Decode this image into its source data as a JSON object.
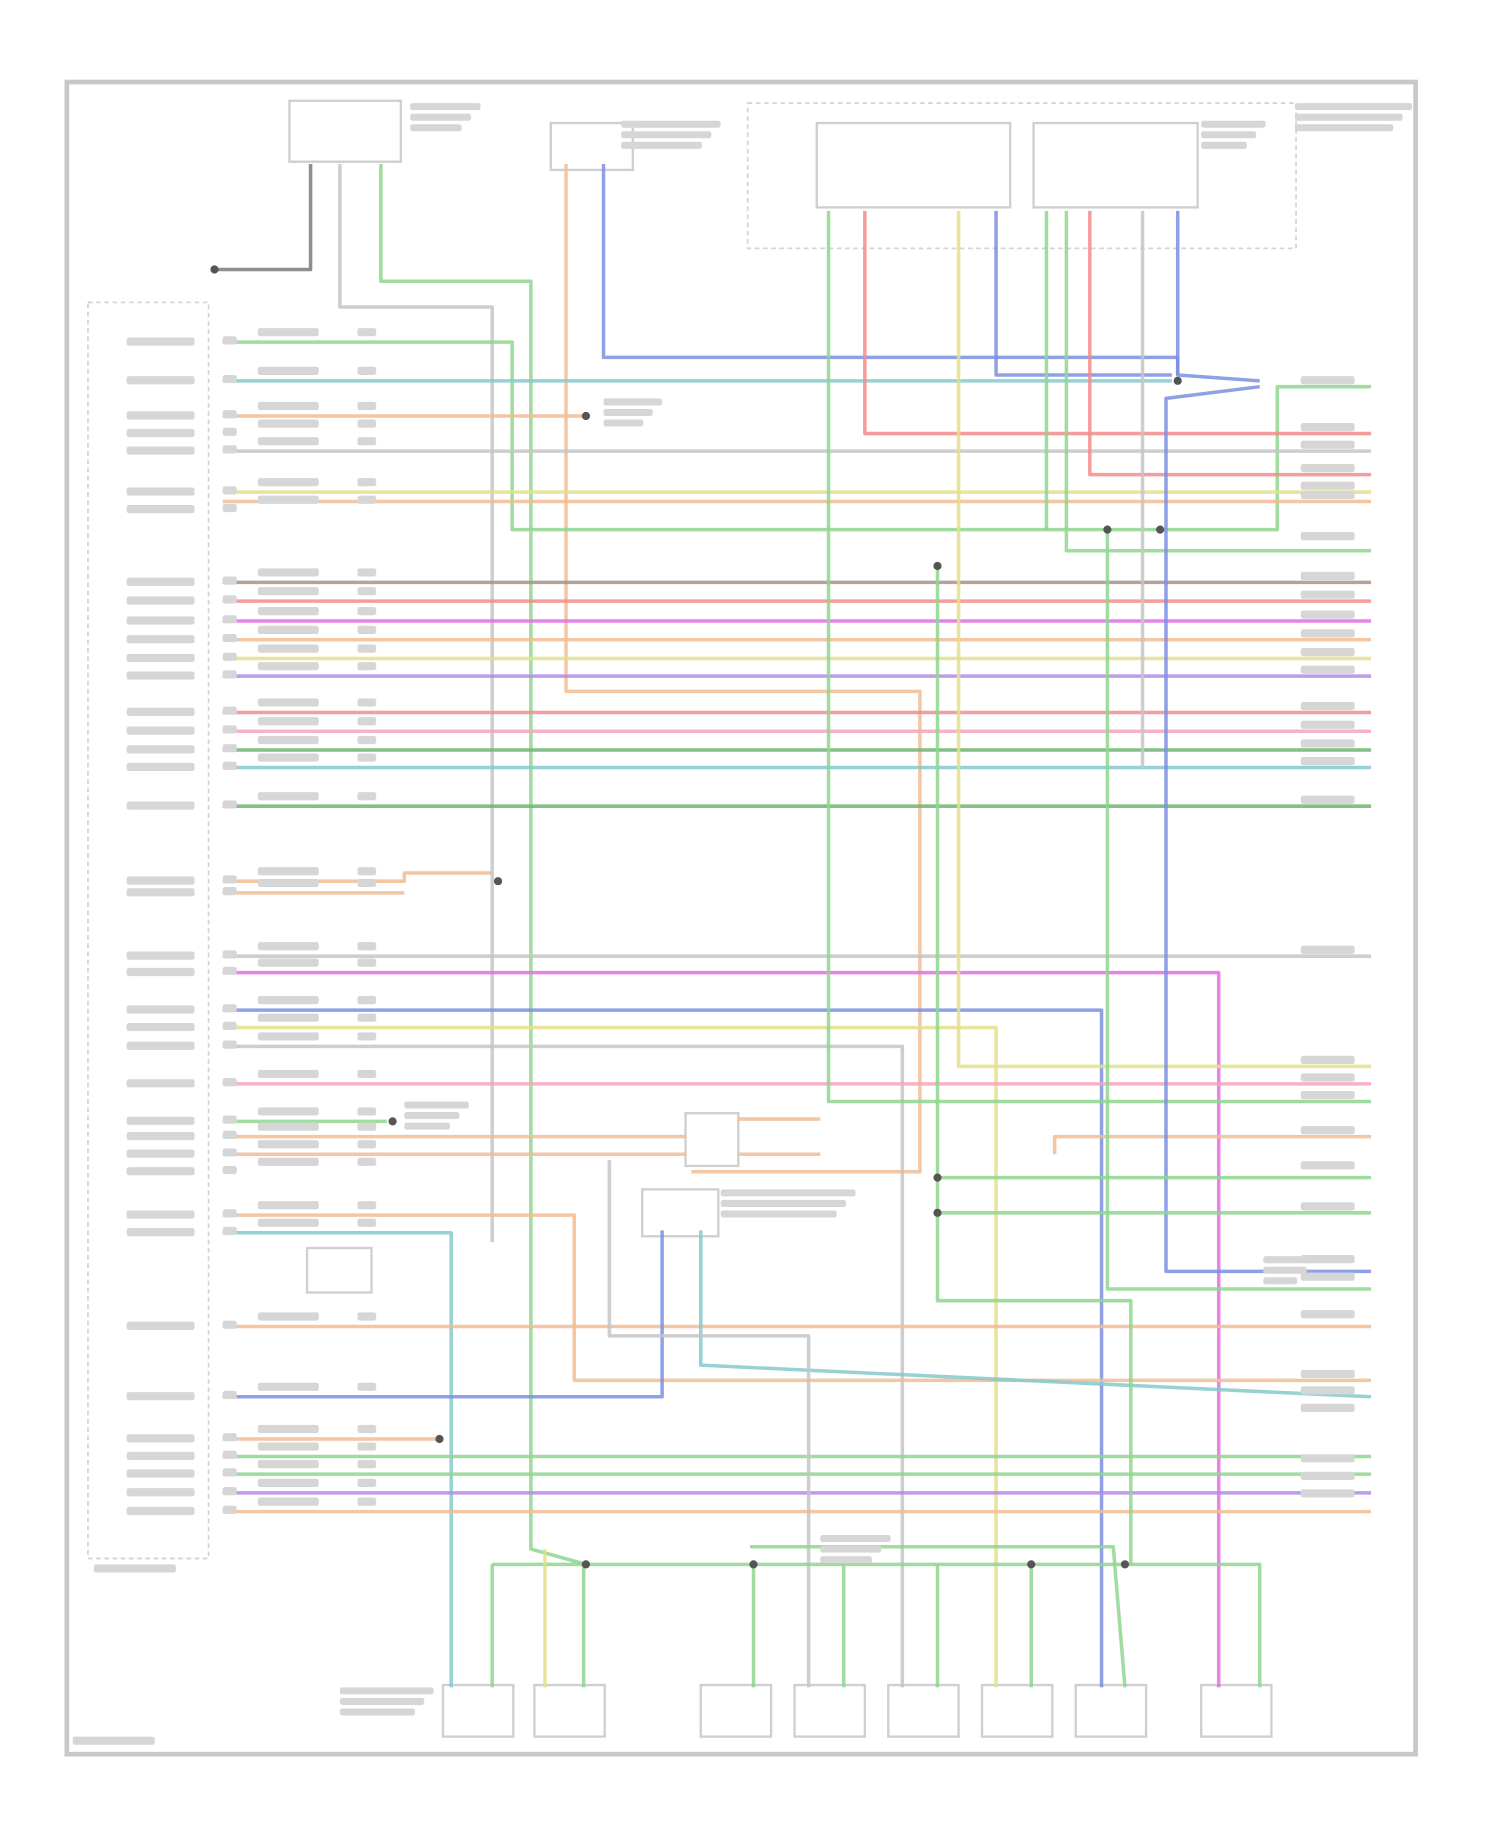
{
  "diagram": {
    "wire_colors": {
      "green": "#8fd68f",
      "teal": "#86c9cc",
      "orange": "#f1bc94",
      "yellow": "#e4df88",
      "grey": "#c6c6c6",
      "red": "#f28c8c",
      "pink": "#f4a6bb",
      "magenta": "#e36fe3",
      "purple": "#b48be6",
      "blue": "#7b8fe2",
      "darkgreen": "#6fb46f",
      "brown": "#a89288",
      "darkgrey": "#7a7a7a"
    },
    "frame_color": "#c8c8c8",
    "text_legible": false
  }
}
